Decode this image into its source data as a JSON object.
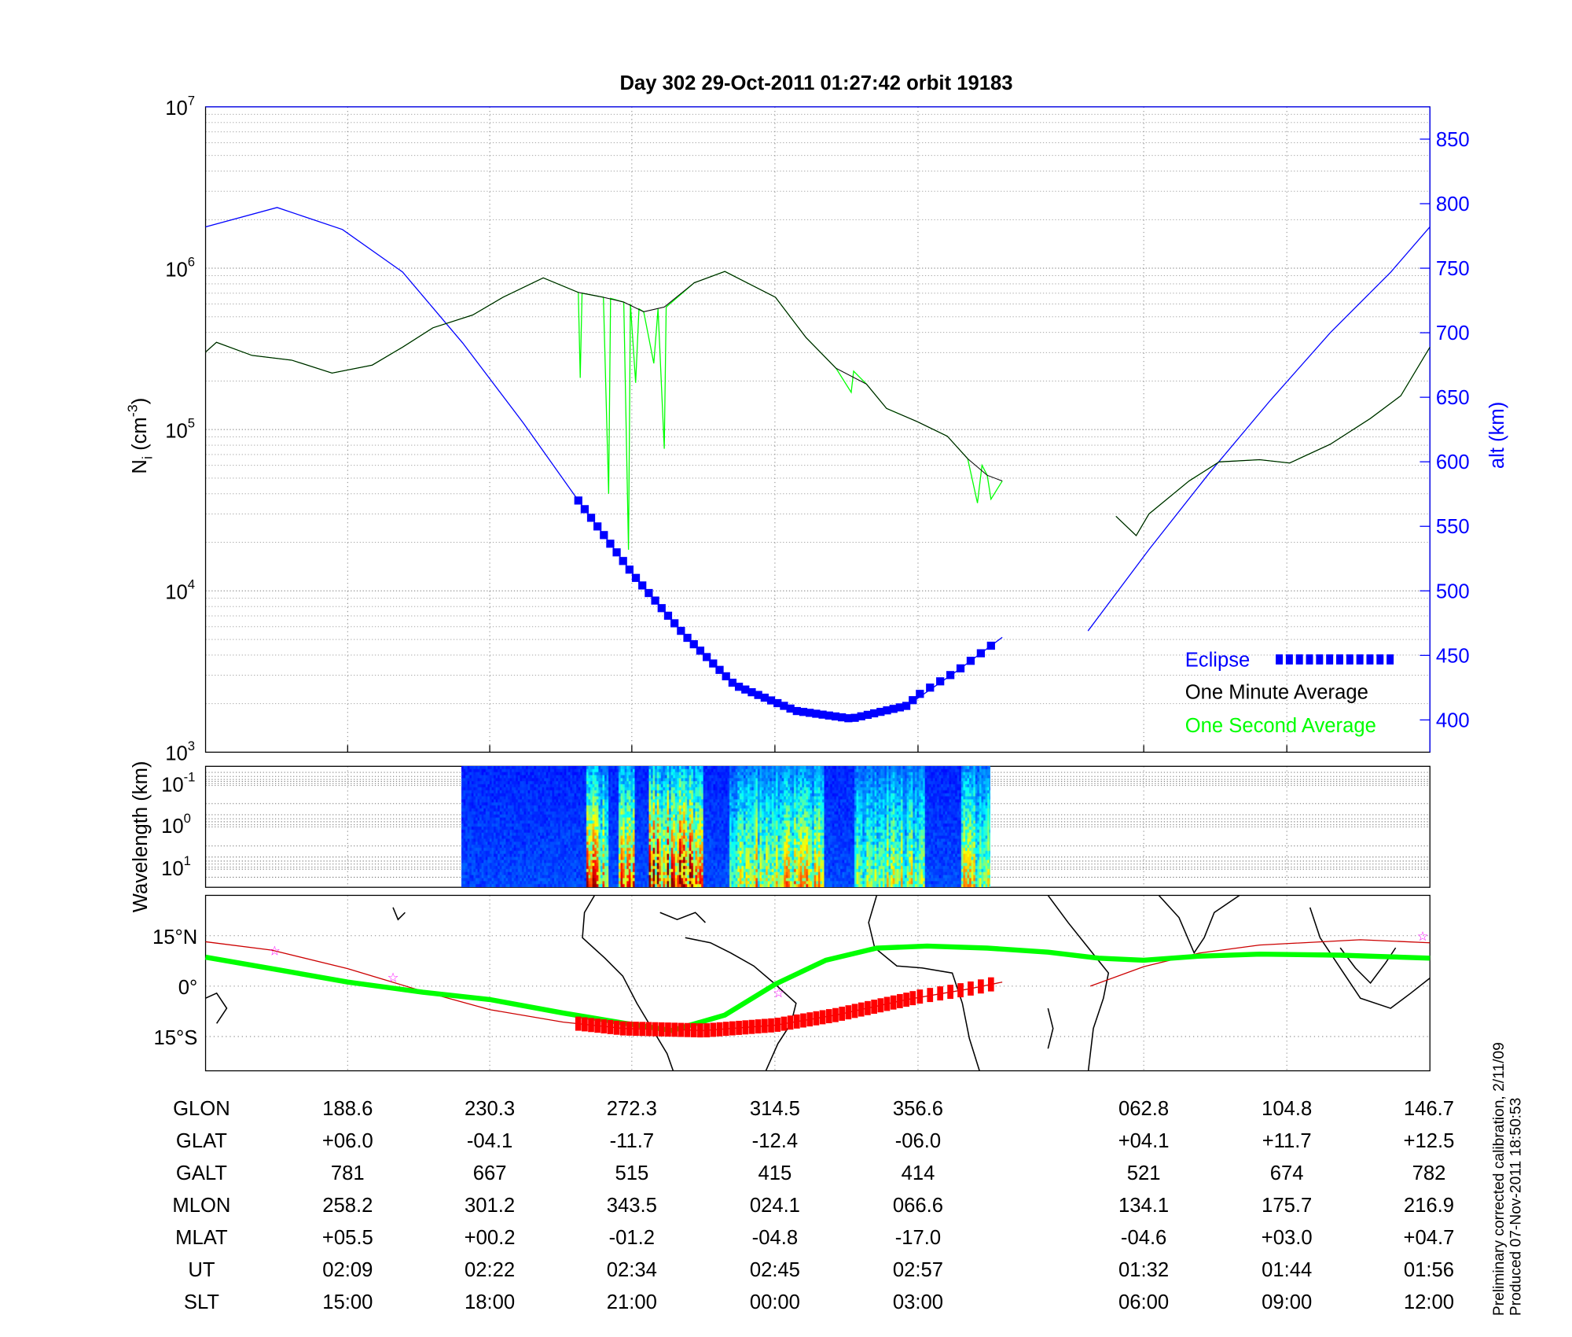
{
  "title": "Day 302  29-Oct-2011 01:27:42   orbit 19183",
  "colors": {
    "altitude": "#0000ff",
    "minute_avg": "#000000",
    "second_avg": "#00ff00",
    "eclipse": "#0000ff",
    "map_track": "#00ff00",
    "map_orbit": "#cc0000",
    "map_eclipse": "#ff0000",
    "stars": "#ff00ff"
  },
  "chart_data": [
    {
      "type": "line",
      "title": "Day 302  29-Oct-2011 01:27:42   orbit 19183",
      "x_axis": {
        "quantity": "SLT (hours, continuing past 24)",
        "ticks": [
          12,
          15,
          18,
          21,
          24,
          27,
          30,
          33,
          36
        ]
      },
      "ylabel": {
        "main": "N",
        "sub": "i",
        "unit_pre": " (cm",
        "unit_exp": "-3",
        "unit_post": ")"
      },
      "yscale": "log",
      "ylim": [
        1000,
        10000000
      ],
      "yticks": [
        {
          "base": "10",
          "exp": "3"
        },
        {
          "base": "10",
          "exp": "4"
        },
        {
          "base": "10",
          "exp": "5"
        },
        {
          "base": "10",
          "exp": "6"
        },
        {
          "base": "10",
          "exp": "7"
        }
      ],
      "y2label": "alt (km)",
      "y2lim": [
        375,
        875
      ],
      "y2ticks": [
        "400",
        "450",
        "500",
        "550",
        "600",
        "650",
        "700",
        "750",
        "800",
        "850"
      ],
      "grid": true,
      "legend": {
        "position": "bottom-right",
        "items": [
          "Eclipse",
          "One Minute Average",
          "One Second Average"
        ]
      },
      "series": [
        {
          "name": "One Second Average",
          "axis": "left",
          "segments": [
            [
              [
                12,
                302000
              ],
              [
                12.23,
                347000
              ],
              [
                12.98,
                288000
              ],
              [
                13.82,
                269000
              ],
              [
                14.67,
                224000
              ],
              [
                15.52,
                251000
              ],
              [
                16.16,
                324000
              ],
              [
                16.8,
                427000
              ],
              [
                17.64,
                513000
              ],
              [
                18.28,
                661000
              ],
              [
                19.13,
                871000
              ],
              [
                19.87,
                708000
              ],
              [
                19.91,
                209000
              ],
              [
                19.95,
                700000
              ],
              [
                20.4,
                661000
              ],
              [
                20.51,
                40000
              ],
              [
                20.55,
                650000
              ],
              [
                20.83,
                617000
              ],
              [
                20.93,
                18000
              ],
              [
                20.97,
                600000
              ],
              [
                21.08,
                195000
              ],
              [
                21.15,
                560000
              ],
              [
                21.25,
                537000
              ],
              [
                21.46,
                257000
              ],
              [
                21.55,
                560000
              ],
              [
                21.68,
                76000
              ],
              [
                21.72,
                575000
              ],
              [
                22.31,
                813000
              ],
              [
                22.95,
                955000
              ],
              [
                23.48,
                794000
              ],
              [
                24.01,
                661000
              ],
              [
                24.65,
                372000
              ],
              [
                25.28,
                240000
              ],
              [
                25.6,
                170000
              ],
              [
                25.65,
                230000
              ],
              [
                25.92,
                191000
              ],
              [
                26.34,
                135000
              ],
              [
                26.98,
                112000
              ],
              [
                27.39,
                91000
              ],
              [
                27.66,
                66000
              ],
              [
                27.79,
                35000
              ],
              [
                27.85,
                60000
              ],
              [
                27.92,
                52000
              ],
              [
                27.97,
                37000
              ],
              [
                28.12,
                48000
              ]
            ],
            [
              [
                29.63,
                29000
              ],
              [
                29.9,
                22000
              ],
              [
                30.11,
                30000
              ],
              [
                30.95,
                48000
              ],
              [
                31.58,
                63000
              ],
              [
                32.43,
                65000
              ],
              [
                33.06,
                62000
              ],
              [
                33.91,
                81000
              ],
              [
                34.75,
                117000
              ],
              [
                35.39,
                162000
              ],
              [
                36,
                324000
              ]
            ]
          ]
        },
        {
          "name": "One Minute Average",
          "axis": "left",
          "segments": [
            [
              [
                12,
                302000
              ],
              [
                12.23,
                347000
              ],
              [
                12.98,
                288000
              ],
              [
                13.82,
                269000
              ],
              [
                14.67,
                224000
              ],
              [
                15.52,
                251000
              ],
              [
                16.16,
                324000
              ],
              [
                16.8,
                427000
              ],
              [
                17.64,
                513000
              ],
              [
                18.28,
                661000
              ],
              [
                19.13,
                871000
              ],
              [
                19.87,
                708000
              ],
              [
                20.4,
                661000
              ],
              [
                20.83,
                617000
              ],
              [
                21.25,
                537000
              ],
              [
                21.68,
                575000
              ],
              [
                22.31,
                813000
              ],
              [
                22.95,
                955000
              ],
              [
                23.48,
                794000
              ],
              [
                24.01,
                661000
              ],
              [
                24.65,
                372000
              ],
              [
                25.28,
                240000
              ],
              [
                25.92,
                191000
              ],
              [
                26.34,
                135000
              ],
              [
                26.98,
                112000
              ],
              [
                27.39,
                91000
              ],
              [
                27.66,
                66000
              ],
              [
                27.92,
                52000
              ],
              [
                28.12,
                48000
              ]
            ],
            [
              [
                29.63,
                29000
              ],
              [
                29.9,
                22000
              ],
              [
                30.11,
                30000
              ],
              [
                30.95,
                48000
              ],
              [
                31.58,
                63000
              ],
              [
                32.43,
                65000
              ],
              [
                33.06,
                62000
              ],
              [
                33.91,
                81000
              ],
              [
                34.75,
                117000
              ],
              [
                35.39,
                162000
              ],
              [
                36,
                324000
              ]
            ]
          ]
        },
        {
          "axis": "right",
          "segments": [
            [
              [
                12,
                782
              ],
              [
                13.51,
                797
              ],
              [
                14.89,
                780
              ],
              [
                16.16,
                747
              ],
              [
                17.43,
                692
              ],
              [
                18.71,
                630
              ],
              [
                19.87,
                570
              ],
              [
                21.04,
                512
              ],
              [
                22.1,
                466
              ],
              [
                23.16,
                427
              ],
              [
                24.44,
                407
              ],
              [
                25.6,
                401
              ],
              [
                26.77,
                411
              ],
              [
                27.52,
                438
              ],
              [
                28.12,
                464
              ]
            ],
            [
              [
                29.26,
                469
              ],
              [
                30.11,
                532
              ],
              [
                31.37,
                591
              ],
              [
                32.64,
                647
              ],
              [
                33.91,
                700
              ],
              [
                35.18,
                747
              ],
              [
                36,
                782
              ]
            ]
          ]
        },
        {
          "name": "Eclipse",
          "axis": "right",
          "on_series": "altitude",
          "x_range": [
            19.87,
            27.97
          ]
        }
      ]
    },
    {
      "type": "heatmap",
      "ylabel": "Wavelength (km)",
      "yscale": "log",
      "yticks": [
        {
          "base": "10",
          "exp": "-1"
        },
        {
          "base": "10",
          "exp": "0"
        },
        {
          "base": "10",
          "exp": "1"
        }
      ],
      "x_range": [
        17.39,
        27.92
      ],
      "colormap": "jet",
      "active_bands": [
        [
          19.85,
          20.3,
          0.85
        ],
        [
          20.5,
          20.8,
          0.8
        ],
        [
          21.1,
          22.2,
          0.95
        ],
        [
          22.7,
          24.6,
          0.65
        ],
        [
          25.2,
          26.6,
          0.55
        ],
        [
          27.3,
          27.92,
          0.6
        ]
      ]
    },
    {
      "type": "line",
      "yticks": [
        "15°N",
        "0°",
        "15°S"
      ],
      "ylim": [
        -26,
        27
      ],
      "series": [
        {
          "name": "track",
          "points": [
            [
              12,
              8.6
            ],
            [
              13.4,
              5.2
            ],
            [
              15,
              1.2
            ],
            [
              16.58,
              -1.8
            ],
            [
              18,
              -4
            ],
            [
              19.55,
              -8
            ],
            [
              20.83,
              -11
            ],
            [
              21.84,
              -13.2
            ],
            [
              22.95,
              -8.6
            ],
            [
              24.01,
              0.6
            ],
            [
              25.07,
              7.7
            ],
            [
              26.13,
              11.3
            ],
            [
              27.12,
              11.9
            ],
            [
              27.92,
              11.3
            ],
            [
              28.73,
              10.1
            ],
            [
              29.4,
              8.3
            ],
            [
              30,
              7.7
            ],
            [
              31.16,
              8.9
            ],
            [
              32.43,
              9.5
            ],
            [
              34.12,
              9.2
            ],
            [
              36,
              8.3
            ]
          ]
        },
        {
          "name": "orbit",
          "segments": [
            [
              [
                12,
                13.2
              ],
              [
                13.4,
                10.7
              ],
              [
                15,
                5.2
              ],
              [
                16.58,
                -1.5
              ],
              [
                18,
                -7
              ],
              [
                19.55,
                -10.7
              ],
              [
                20.83,
                -12.6
              ],
              [
                22.52,
                -13.2
              ],
              [
                24.01,
                -11.6
              ],
              [
                25.28,
                -8.6
              ],
              [
                26.77,
                -4
              ],
              [
                27.66,
                -0.9
              ],
              [
                28.12,
                1.2
              ]
            ],
            [
              [
                29.29,
                0
              ],
              [
                30,
                5.8
              ],
              [
                31.16,
                9.8
              ],
              [
                32.43,
                12.2
              ],
              [
                34.54,
                13.8
              ],
              [
                36,
                12.9
              ]
            ]
          ]
        },
        {
          "name": "eclipse",
          "x_range": [
            19.87,
            27.97
          ]
        },
        {
          "name": "markers",
          "points": [
            [
              13.46,
              10.7
            ],
            [
              15.96,
              2.8
            ],
            [
              24.08,
              -1.8
            ],
            [
              35.85,
              15
            ]
          ]
        }
      ]
    }
  ],
  "table": {
    "rows": [
      {
        "label": "GLON",
        "values": [
          "188.6",
          "230.3",
          "272.3",
          "314.5",
          "356.6",
          "062.8",
          "104.8",
          "146.7"
        ]
      },
      {
        "label": "GLAT",
        "values": [
          "+06.0",
          "-04.1",
          "-11.7",
          "-12.4",
          "-06.0",
          "+04.1",
          "+11.7",
          "+12.5"
        ]
      },
      {
        "label": "GALT",
        "values": [
          "781",
          "667",
          "515",
          "415",
          "414",
          "521",
          "674",
          "782"
        ]
      },
      {
        "label": "MLON",
        "values": [
          "258.2",
          "301.2",
          "343.5",
          "024.1",
          "066.6",
          "134.1",
          "175.7",
          "216.9"
        ]
      },
      {
        "label": "MLAT",
        "values": [
          "+05.5",
          "+00.2",
          "-01.2",
          "-04.8",
          "-17.0",
          "-04.6",
          "+03.0",
          "+04.7"
        ]
      },
      {
        "label": "UT",
        "values": [
          "02:09",
          "02:22",
          "02:34",
          "02:45",
          "02:57",
          "01:32",
          "01:44",
          "01:56"
        ]
      },
      {
        "label": "SLT",
        "values": [
          "15:00",
          "18:00",
          "21:00",
          "00:00",
          "03:00",
          "06:00",
          "09:00",
          "12:00"
        ]
      }
    ]
  },
  "footnote": [
    "Preliminary corrected calibration, 2/11/09",
    "Produced 07-Nov-2011 18:50:53"
  ]
}
